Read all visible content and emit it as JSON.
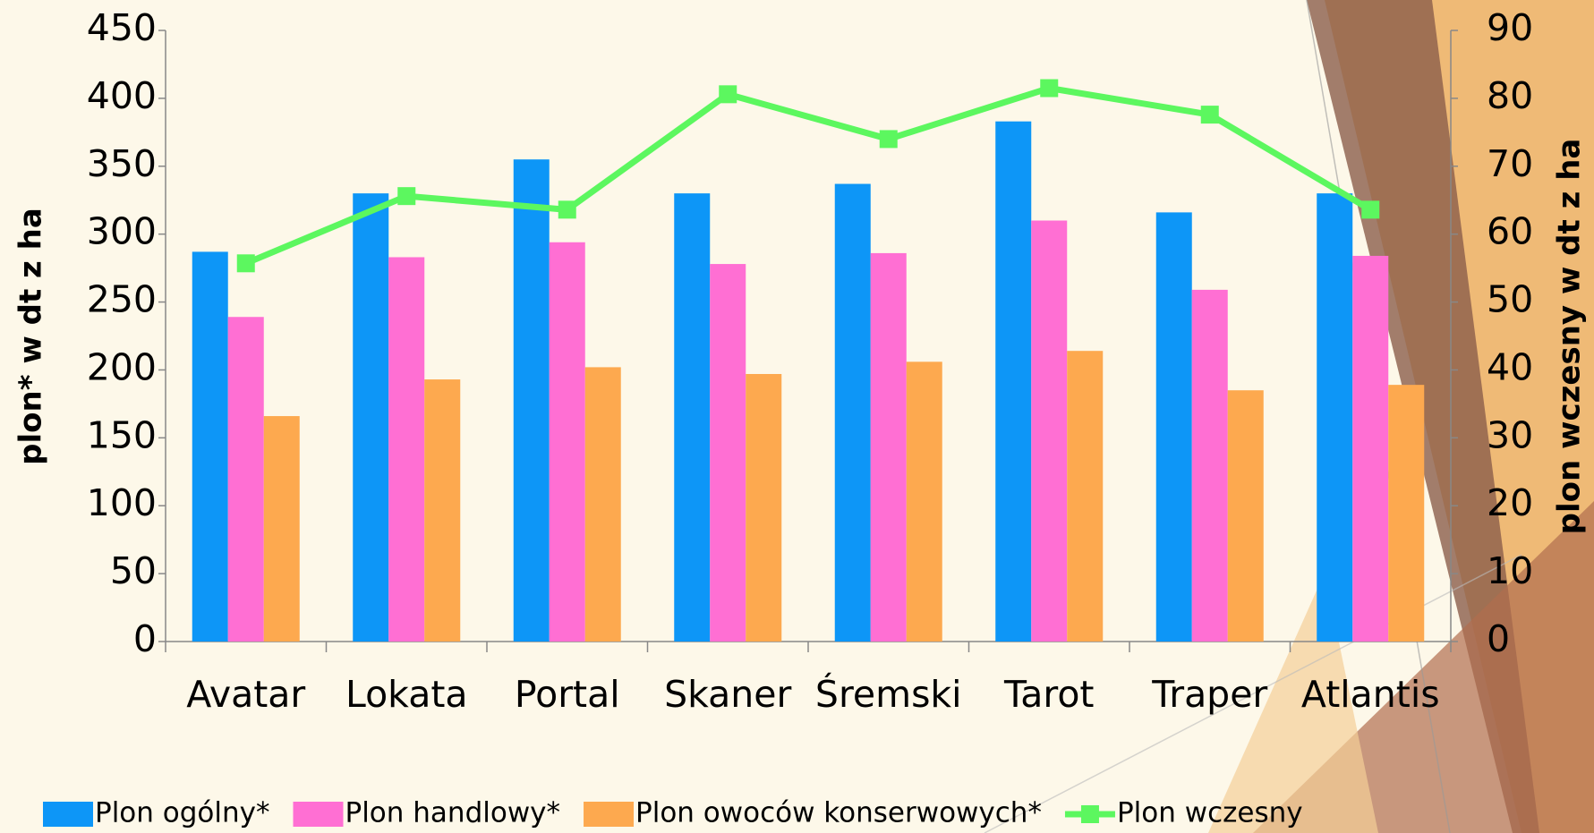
{
  "chart_data": {
    "type": "bar",
    "categories": [
      "Avatar",
      "Lokata",
      "Portal",
      "Skaner",
      "Śremski",
      "Tarot",
      "Traper",
      "Atlantis"
    ],
    "series": [
      {
        "name": "Plon ogólny*",
        "color": "#0d96f7",
        "values": [
          287,
          330,
          355,
          330,
          337,
          383,
          316,
          330
        ]
      },
      {
        "name": "Plon handlowy*",
        "color": "#ff6fd3",
        "values": [
          239,
          283,
          294,
          278,
          286,
          310,
          259,
          284
        ]
      },
      {
        "name": "Plon owoców konserwowych*",
        "color": "#fda94f",
        "values": [
          166,
          193,
          202,
          197,
          206,
          214,
          185,
          189
        ]
      },
      {
        "name": "Plon wczesny",
        "color": "#5cf75f",
        "type": "line",
        "axis": "y2",
        "values": [
          55.7,
          65.6,
          63.6,
          80.6,
          74,
          81.5,
          77.6,
          63.6
        ]
      }
    ],
    "ylabel": "plon*  w dt z ha",
    "y2label": "plon wczesny w dt z ha",
    "ylim": [
      0,
      450
    ],
    "yticks": [
      0,
      50,
      100,
      150,
      200,
      250,
      300,
      350,
      400,
      450
    ],
    "y2lim": [
      0,
      90
    ],
    "y2ticks": [
      0,
      10,
      20,
      30,
      40,
      50,
      60,
      70,
      80,
      90
    ],
    "legend": "bottom"
  }
}
